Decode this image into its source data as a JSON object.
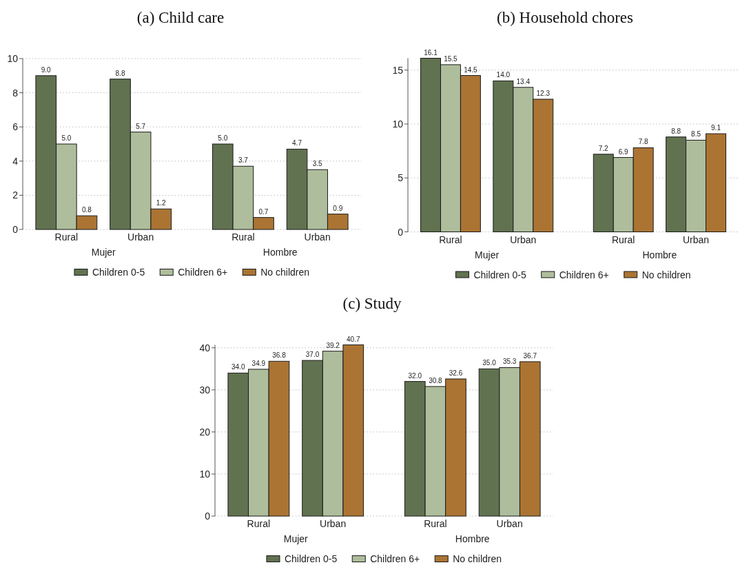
{
  "chart_data": [
    {
      "type": "bar",
      "title": "(a) Child care",
      "categories": [
        "Rural",
        "Urban",
        "Rural",
        "Urban"
      ],
      "annotations": [
        "Mujer",
        "Hombre"
      ],
      "series": [
        {
          "name": "Children 0-5",
          "color": "#617250",
          "values": [
            9.0,
            8.8,
            5.0,
            4.7
          ],
          "value_labels": [
            "9.0",
            "8.8",
            "5.0",
            "4.7"
          ]
        },
        {
          "name": "Children 6+",
          "color": "#aebd9b",
          "values": [
            5.0,
            5.7,
            3.7,
            3.5
          ],
          "value_labels": [
            "5.0",
            "5.7",
            "3.7",
            "3.5"
          ]
        },
        {
          "name": "No children",
          "color": "#ab7433",
          "values": [
            0.8,
            1.2,
            0.7,
            0.9
          ],
          "value_labels": [
            "0.8",
            "1.2",
            "0.7",
            "0.9"
          ]
        }
      ],
      "ylim": [
        0,
        10
      ],
      "yticks": [
        0,
        2,
        4,
        6,
        8,
        10
      ],
      "grid": "y",
      "legend": "bottom"
    },
    {
      "type": "bar",
      "title": "(b) Household chores",
      "categories": [
        "Rural",
        "Urban",
        "Rural",
        "Urban"
      ],
      "annotations": [
        "Mujer",
        "Hombre"
      ],
      "series": [
        {
          "name": "Children 0-5",
          "color": "#617250",
          "values": [
            16.1,
            14.0,
            7.2,
            8.8
          ],
          "value_labels": [
            "16.1",
            "14.0",
            "7.2",
            "8.8"
          ]
        },
        {
          "name": "Children 6+",
          "color": "#aebd9b",
          "values": [
            15.5,
            13.4,
            6.9,
            8.5
          ],
          "value_labels": [
            "15.5",
            "13.4",
            "6.9",
            "8.5"
          ]
        },
        {
          "name": "No children",
          "color": "#ab7433",
          "values": [
            14.5,
            12.3,
            7.8,
            9.1
          ],
          "value_labels": [
            "14.5",
            "12.3",
            "7.8",
            "9.1"
          ]
        }
      ],
      "ylim": [
        0,
        16.1
      ],
      "yticks": [
        0,
        5,
        10,
        15
      ],
      "grid": "y",
      "legend": "bottom"
    },
    {
      "type": "bar",
      "title": "(c) Study",
      "categories": [
        "Rural",
        "Urban",
        "Rural",
        "Urban"
      ],
      "annotations": [
        "Mujer",
        "Hombre"
      ],
      "series": [
        {
          "name": "Children 0-5",
          "color": "#617250",
          "values": [
            34.0,
            37.0,
            32.0,
            35.0
          ],
          "value_labels": [
            "34.0",
            "37.0",
            "32.0",
            "35.0"
          ]
        },
        {
          "name": "Children 6+",
          "color": "#aebd9b",
          "values": [
            34.9,
            39.2,
            30.8,
            35.3
          ],
          "value_labels": [
            "34.9",
            "39.2",
            "30.8",
            "35.3"
          ]
        },
        {
          "name": "No children",
          "color": "#ab7433",
          "values": [
            36.8,
            40.7,
            32.6,
            36.7
          ],
          "value_labels": [
            "36.8",
            "40.7",
            "32.6",
            "36.7"
          ]
        }
      ],
      "ylim": [
        0,
        40.7
      ],
      "yticks": [
        0,
        10,
        20,
        30,
        40
      ],
      "grid": "y",
      "legend": "bottom"
    }
  ]
}
